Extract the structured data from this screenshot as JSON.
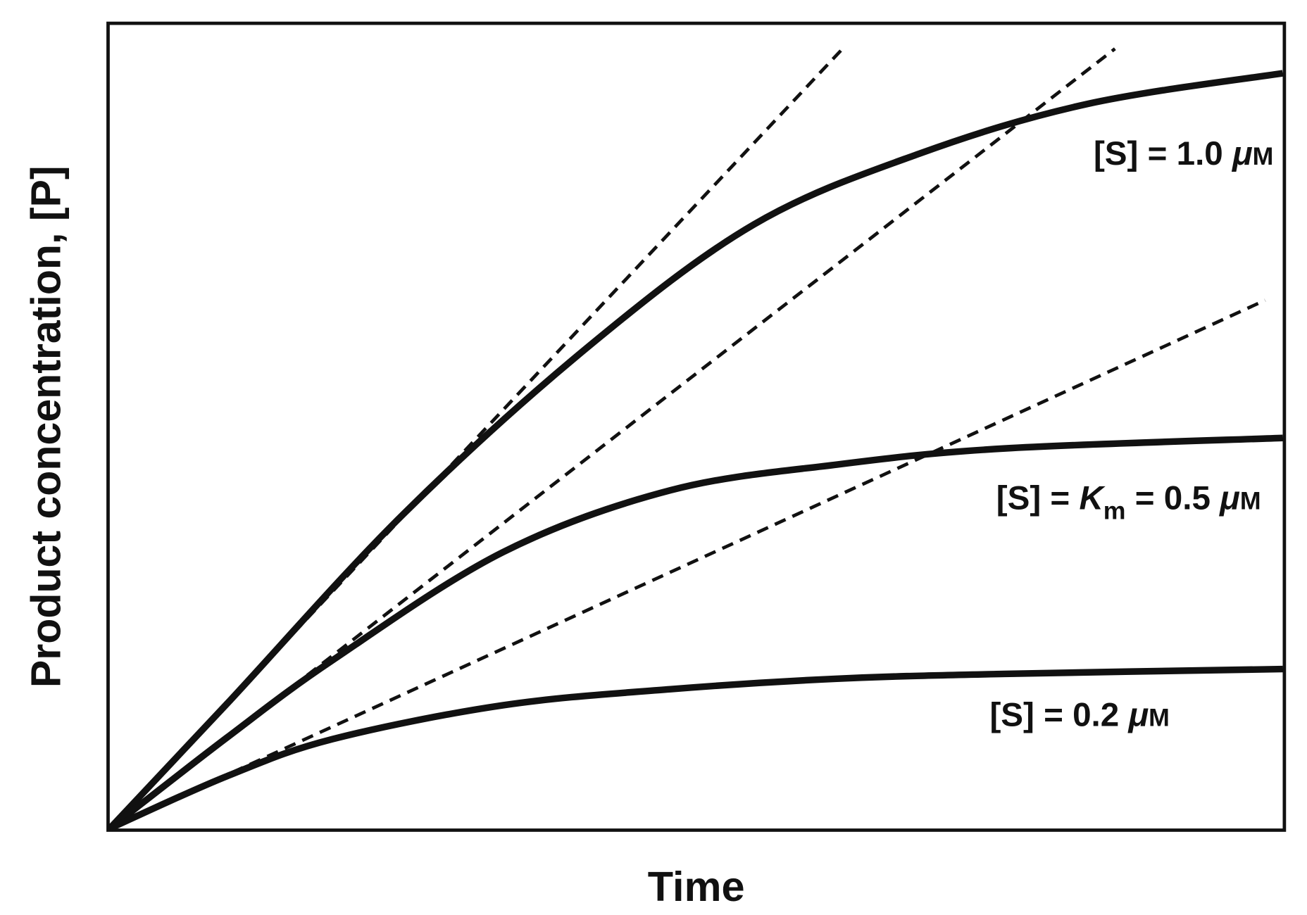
{
  "chart_data": {
    "type": "line",
    "title": "",
    "xlabel": "Time",
    "ylabel": "Product concentration, [P]",
    "xlim": [
      0,
      1
    ],
    "ylim": [
      0,
      1
    ],
    "grid": false,
    "legend": "none (direct labels at right end of curves)",
    "series": [
      {
        "name": "[S] = 1.0 μM",
        "label_parts": {
          "prefix": "[S] = 1.0 ",
          "mu": "μ",
          "unit": "M"
        },
        "style": "solid",
        "x": [
          0,
          0.1,
          0.25,
          0.406,
          0.549,
          0.69,
          0.834,
          1.0
        ],
        "y": [
          0,
          0.155,
          0.39,
          0.596,
          0.75,
          0.838,
          0.9,
          0.938
        ],
        "initial_tangent_slope": 1.55,
        "tangent_x_end": 0.624
      },
      {
        "name": "[S] = Km = 0.5 μM",
        "label_parts": {
          "prefix": "[S] = ",
          "k": "K",
          "sub": "m",
          "mid": " = 0.5 ",
          "mu": "μ",
          "unit": "M"
        },
        "style": "solid",
        "x": [
          0,
          0.1,
          0.19,
          0.335,
          0.478,
          0.62,
          0.763,
          1.0
        ],
        "y": [
          0,
          0.113,
          0.209,
          0.343,
          0.42,
          0.452,
          0.472,
          0.485
        ],
        "initial_tangent_slope": 1.13,
        "tangent_x_end": 0.857
      },
      {
        "name": "[S] = 0.2 μM",
        "label_parts": {
          "prefix": "[S] = 0.2 ",
          "mu": "μ",
          "unit": "M"
        },
        "style": "solid",
        "x": [
          0,
          0.1,
          0.19,
          0.335,
          0.478,
          0.62,
          0.763,
          1.0
        ],
        "y": [
          0,
          0.065,
          0.111,
          0.153,
          0.173,
          0.186,
          0.192,
          0.198
        ],
        "initial_tangent_slope": 0.666,
        "tangent_x_end": 0.985
      }
    ],
    "colors": {
      "curve": "#111111",
      "tangent": "#111111",
      "axes": "#111111"
    }
  }
}
